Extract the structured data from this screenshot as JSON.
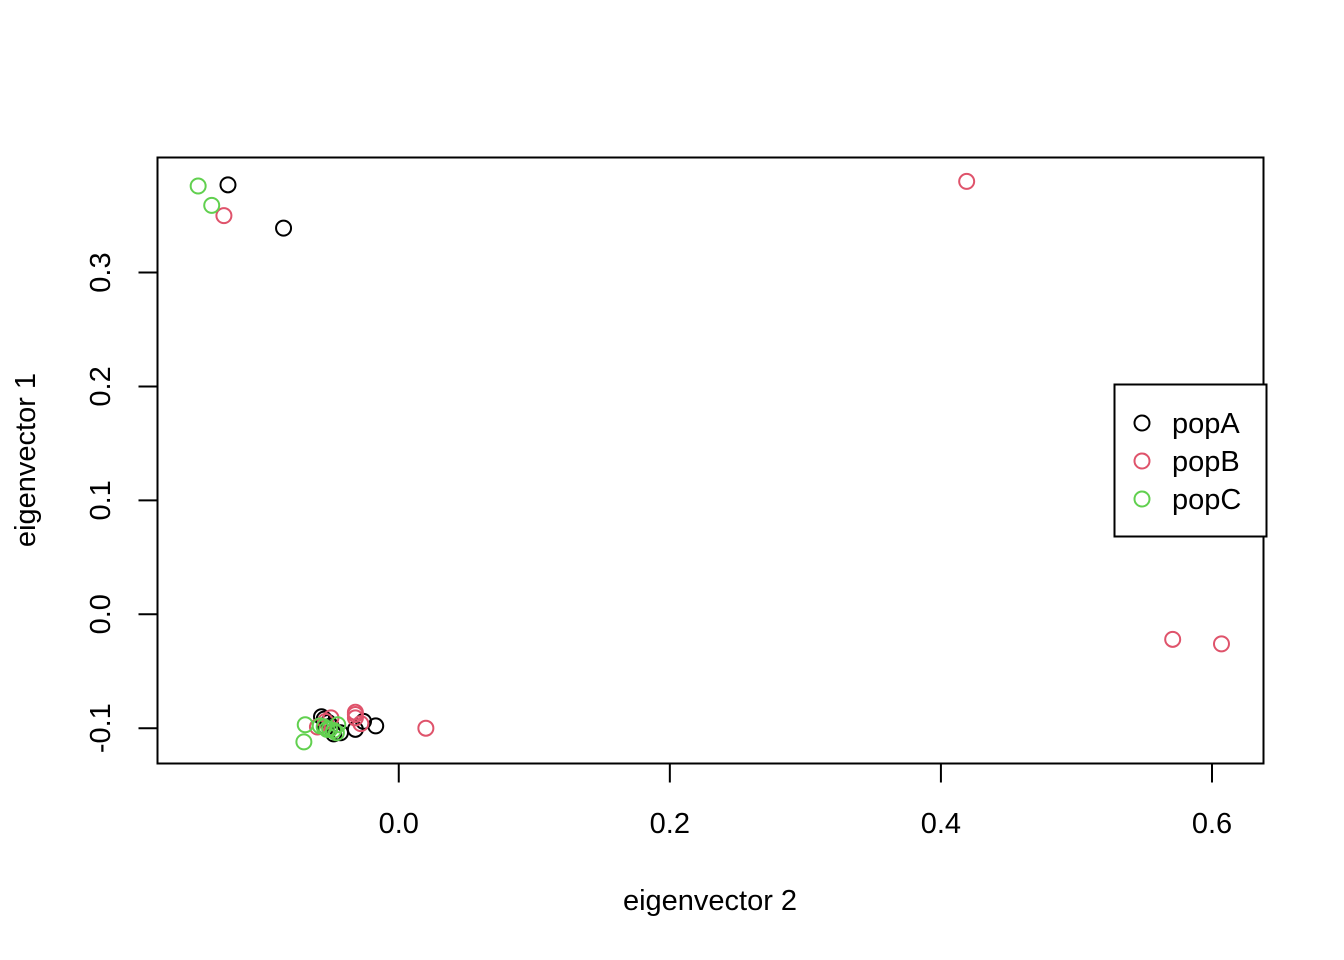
{
  "chart_data": {
    "type": "scatter",
    "xlabel": "eigenvector 2",
    "ylabel": "eigenvector 1",
    "xlim": [
      -0.178,
      0.638
    ],
    "ylim": [
      -0.131,
      0.401
    ],
    "x_ticks": [
      0.0,
      0.2,
      0.4,
      0.6
    ],
    "x_tick_labels": [
      "0.0",
      "0.2",
      "0.4",
      "0.6"
    ],
    "y_ticks": [
      -0.1,
      0.0,
      0.1,
      0.2,
      0.3
    ],
    "y_tick_labels": [
      "-0.1",
      "0.0",
      "0.1",
      "0.2",
      "0.3"
    ],
    "grid": false,
    "legend_position": "right",
    "marker": "open-circle",
    "series": [
      {
        "name": "popA",
        "color": "#000000",
        "points": [
          [
            -0.126,
            0.377
          ],
          [
            -0.085,
            0.339
          ],
          [
            -0.057,
            -0.09
          ],
          [
            -0.055,
            -0.092
          ],
          [
            -0.052,
            -0.095
          ],
          [
            -0.054,
            -0.099
          ],
          [
            -0.05,
            -0.098
          ],
          [
            -0.048,
            -0.105
          ],
          [
            -0.043,
            -0.104
          ],
          [
            -0.032,
            -0.101
          ],
          [
            -0.026,
            -0.094
          ],
          [
            -0.017,
            -0.098
          ]
        ]
      },
      {
        "name": "popB",
        "color": "#DF536B",
        "points": [
          [
            0.419,
            0.38
          ],
          [
            -0.129,
            0.35
          ],
          [
            0.571,
            -0.022
          ],
          [
            0.607,
            -0.026
          ],
          [
            0.02,
            -0.1
          ],
          [
            -0.032,
            -0.086
          ],
          [
            -0.032,
            -0.088
          ],
          [
            -0.032,
            -0.091
          ],
          [
            -0.05,
            -0.091
          ],
          [
            -0.054,
            -0.094
          ],
          [
            -0.06,
            -0.099
          ],
          [
            -0.028,
            -0.096
          ]
        ]
      },
      {
        "name": "popC",
        "color": "#61D04F",
        "points": [
          [
            -0.148,
            0.376
          ],
          [
            -0.138,
            0.359
          ],
          [
            -0.069,
            -0.097
          ],
          [
            -0.07,
            -0.112
          ],
          [
            -0.058,
            -0.098
          ],
          [
            -0.055,
            -0.099
          ],
          [
            -0.053,
            -0.101
          ],
          [
            -0.051,
            -0.101
          ],
          [
            -0.048,
            -0.102
          ],
          [
            -0.046,
            -0.104
          ],
          [
            -0.045,
            -0.097
          ]
        ]
      }
    ]
  }
}
